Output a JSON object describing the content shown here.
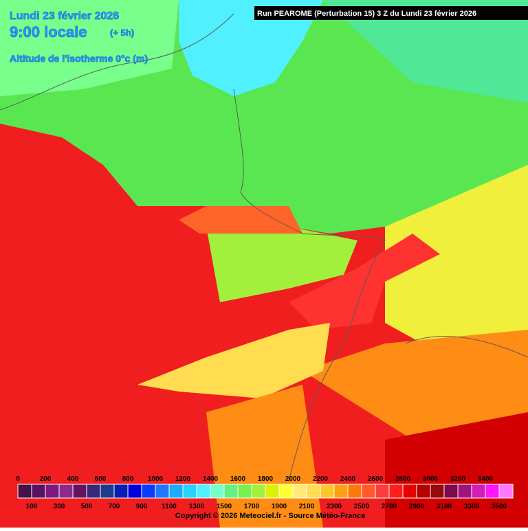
{
  "header": {
    "date": "Lundi 23 février 2026",
    "time": "9:00 locale",
    "offset": "(+ 5h)",
    "variable": "Altitude de l'isotherme 0°c (m)",
    "run": "Run PEAROME (Perturbation 15) 3 Z du Lundi 23 février 2026"
  },
  "legend": {
    "steps": [
      {
        "value": 0,
        "color": "#46104a"
      },
      {
        "value": 100,
        "color": "#5a1262"
      },
      {
        "value": 200,
        "color": "#7a1a82"
      },
      {
        "value": 300,
        "color": "#8e2a8e"
      },
      {
        "value": 400,
        "color": "#64145e"
      },
      {
        "value": 500,
        "color": "#3a2878"
      },
      {
        "value": 600,
        "color": "#1e3a8c"
      },
      {
        "value": 700,
        "color": "#0a1eb4"
      },
      {
        "value": 800,
        "color": "#0000dc"
      },
      {
        "value": 900,
        "color": "#0a3cff"
      },
      {
        "value": 1000,
        "color": "#1e78ff"
      },
      {
        "value": 1100,
        "color": "#1eaaff"
      },
      {
        "value": 1200,
        "color": "#28d2ff"
      },
      {
        "value": 1300,
        "color": "#50f0ff"
      },
      {
        "value": 1400,
        "color": "#78ffc8"
      },
      {
        "value": 1500,
        "color": "#64f082"
      },
      {
        "value": 1600,
        "color": "#78f050"
      },
      {
        "value": 1700,
        "color": "#a0f03c"
      },
      {
        "value": 1800,
        "color": "#dcf000"
      },
      {
        "value": 1900,
        "color": "#ffff32"
      },
      {
        "value": 2000,
        "color": "#ffeb78"
      },
      {
        "value": 2100,
        "color": "#ffdc50"
      },
      {
        "value": 2200,
        "color": "#ffc828"
      },
      {
        "value": 2300,
        "color": "#ffa014"
      },
      {
        "value": 2400,
        "color": "#ff780a"
      },
      {
        "value": 2500,
        "color": "#ff5a28"
      },
      {
        "value": 2600,
        "color": "#ff3c3c"
      },
      {
        "value": 2700,
        "color": "#ff1e1e"
      },
      {
        "value": 2800,
        "color": "#e60000"
      },
      {
        "value": 2900,
        "color": "#b40000"
      },
      {
        "value": 3000,
        "color": "#960a0a"
      },
      {
        "value": 3100,
        "color": "#7d0a4b"
      },
      {
        "value": 3200,
        "color": "#a0147d"
      },
      {
        "value": 3300,
        "color": "#d21eb4"
      },
      {
        "value": 3400,
        "color": "#ff14ff"
      },
      {
        "value": 3500,
        "color": "#ff78ff"
      }
    ]
  },
  "footer": {
    "copyright": "Copyright © 2026 Meteociel.fr - Source Météo-France"
  }
}
